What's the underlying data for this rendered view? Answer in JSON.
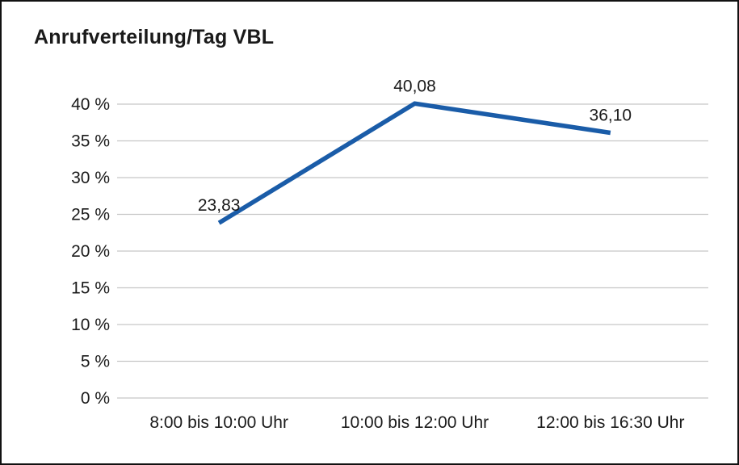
{
  "chart_data": {
    "type": "line",
    "title": "Anrufverteilung/Tag VBL",
    "categories": [
      "8:00 bis 10:00 Uhr",
      "10:00 bis 12:00 Uhr",
      "12:00 bis 16:30 Uhr"
    ],
    "values": [
      23.83,
      40.08,
      36.1
    ],
    "value_labels": [
      "23,83",
      "40,08",
      "36,10"
    ],
    "xlabel": "",
    "ylabel": "",
    "ylim": [
      0,
      40
    ],
    "y_ticks": [
      0,
      5,
      10,
      15,
      20,
      25,
      30,
      35,
      40
    ],
    "y_tick_labels": [
      "0 %",
      "5 %",
      "10 %",
      "15 %",
      "20 %",
      "25 %",
      "30 %",
      "35 %",
      "40 %"
    ],
    "grid": true,
    "legend": "none",
    "line_color": "#1A5CA8",
    "grid_color": "#C6C6C6",
    "text_color": "#1A1A1A"
  }
}
